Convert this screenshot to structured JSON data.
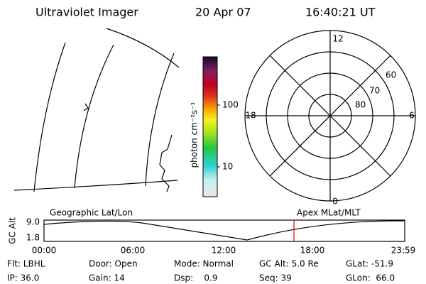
{
  "header": {
    "title": "Ultraviolet Imager",
    "date": "20 Apr 07",
    "time": "16:40:21 UT"
  },
  "colorbar": {
    "label": "photon cm⁻²s⁻¹",
    "ticks": [
      "100",
      "10"
    ]
  },
  "polar": {
    "lat_labels": [
      "80",
      "70",
      "60"
    ],
    "mlt_labels": [
      "12",
      "6",
      "0",
      "18"
    ]
  },
  "timeline": {
    "left_label": "Geographic Lat/Lon",
    "right_label": "Apex MLat/MLT",
    "y_label": "GC Alt",
    "y_ticks": [
      "9.0",
      "1.8"
    ],
    "x_ticks": [
      "00:00",
      "06:00",
      "12:00",
      "18:00",
      "23:59"
    ]
  },
  "footer": {
    "rows": [
      [
        "Flt: LBHL",
        "Door: Open",
        "Mode: Normal",
        "GC Alt: 5.0 Re",
        "GLat: -51.9"
      ],
      [
        "IP: 36.0",
        "Gain: 14",
        "Dsp:    0.9",
        "Seq: 39",
        "GLon:  66.0"
      ]
    ]
  }
}
